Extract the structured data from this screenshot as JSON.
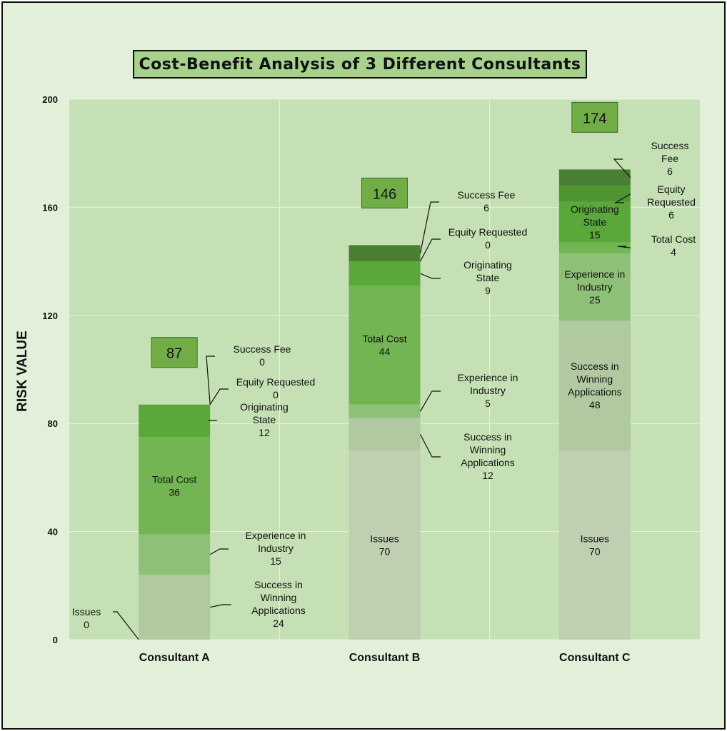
{
  "chart_data": {
    "type": "bar",
    "stacked": true,
    "title": "Cost-Benefit Analysis of 3 Different Consultants",
    "ylabel": "RISK VALUE",
    "ylim": [
      0,
      200
    ],
    "yticks": [
      0,
      40,
      80,
      120,
      160,
      200
    ],
    "grid": true,
    "categories": [
      "Consultant A",
      "Consultant B",
      "Consultant C"
    ],
    "totals": [
      87,
      146,
      174
    ],
    "series": [
      {
        "name": "Issues",
        "values": [
          0,
          70,
          70
        ],
        "color": "#bfcfb2"
      },
      {
        "name": "Success in Winning Applications",
        "values": [
          24,
          12,
          48
        ],
        "color": "#b0c9a0"
      },
      {
        "name": "Experience in Industry",
        "values": [
          15,
          5,
          25
        ],
        "color": "#8fc078"
      },
      {
        "name": "Total Cost",
        "values": [
          36,
          44,
          4
        ],
        "color": "#72b552"
      },
      {
        "name": "Originating State",
        "values": [
          12,
          9,
          15
        ],
        "color": "#5aa83a"
      },
      {
        "name": "Equity Requested",
        "values": [
          0,
          0,
          6
        ],
        "color": "#4e9530"
      },
      {
        "name": "Success Fee",
        "values": [
          0,
          6,
          6
        ],
        "color": "#4a7f33"
      }
    ]
  }
}
